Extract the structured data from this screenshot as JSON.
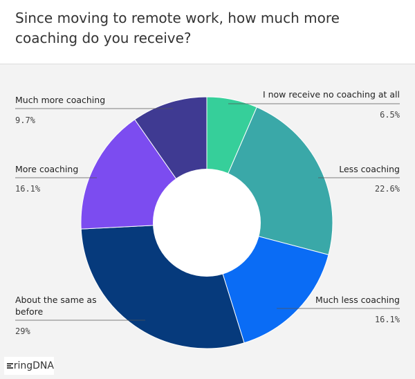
{
  "header": {
    "title": "Since moving to remote work, how much more coaching do you receive?"
  },
  "chart_data": {
    "type": "pie",
    "title": "Since moving to remote work, how much more coaching do you receive?",
    "donut": true,
    "start": "top, clockwise",
    "slices": [
      {
        "label": "I now receive no coaching at all",
        "value": 6.5,
        "display": "6.5%",
        "color": "#36cf9a"
      },
      {
        "label": "Less coaching",
        "value": 22.6,
        "display": "22.6%",
        "color": "#3aa8a8"
      },
      {
        "label": "Much less coaching",
        "value": 16.1,
        "display": "16.1%",
        "color": "#0a6cf5"
      },
      {
        "label": "About the same as before",
        "value": 29,
        "display": "29%",
        "color": "#063a7c"
      },
      {
        "label": "More coaching",
        "value": 16.1,
        "display": "16.1%",
        "color": "#7c4cf0"
      },
      {
        "label": "Much more coaching",
        "value": 9.7,
        "display": "9.7%",
        "color": "#3f3a92"
      }
    ]
  },
  "logo": {
    "text": "ringDNA",
    "icon": "bars-icon"
  }
}
